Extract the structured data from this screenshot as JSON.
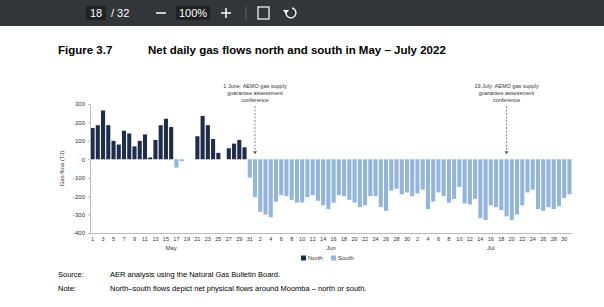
{
  "viewer": {
    "page": "18",
    "page_of": "/ 32",
    "zoom": "100%"
  },
  "chart_data": {
    "type": "bar",
    "figure": "Figure 3.7",
    "title": "Net daily gas flows north and south in May – July 2022",
    "y_label": "Gas flow (TJ)",
    "categories": [
      "1",
      null,
      "3",
      null,
      "5",
      null,
      "7",
      null,
      "9",
      null,
      "11",
      null,
      "13",
      null,
      "15",
      null,
      "17",
      null,
      "19",
      null,
      "21",
      null,
      "23",
      null,
      "25",
      null,
      "27",
      null,
      "29",
      null,
      "31",
      null,
      "2",
      null,
      "4",
      null,
      "6",
      null,
      "8",
      null,
      "10",
      null,
      "12",
      null,
      "14",
      null,
      "16",
      null,
      "18",
      null,
      "20",
      null,
      "22",
      null,
      "24",
      null,
      "26",
      null,
      "28",
      null,
      "30",
      null,
      "2",
      null,
      "4",
      null,
      "6",
      null,
      "8",
      null,
      "10",
      null,
      "12",
      null,
      "14",
      null,
      "16",
      null,
      "18",
      null,
      "20",
      null,
      "22",
      null,
      "24",
      null,
      "26",
      null,
      "28",
      null,
      "30",
      null
    ],
    "x_groups": [
      "May",
      "Jun",
      "Jul"
    ],
    "series": [
      {
        "name": "North",
        "color": "#1f2d4d",
        "values": [
          170,
          185,
          265,
          185,
          100,
          80,
          155,
          140,
          70,
          100,
          135,
          10,
          105,
          185,
          220,
          175,
          null,
          null,
          null,
          null,
          125,
          235,
          185,
          110,
          35,
          null,
          60,
          85,
          105,
          65,
          null,
          null,
          null,
          null,
          null,
          null,
          null,
          null,
          null,
          null,
          null,
          null,
          null,
          null,
          null,
          null,
          null,
          null,
          null,
          null,
          null,
          null,
          null,
          null,
          null,
          null,
          null,
          null,
          null,
          null,
          null,
          null,
          null,
          null,
          null,
          null,
          null,
          null,
          null,
          null,
          null,
          null,
          null,
          null,
          null,
          null,
          null,
          null,
          null,
          null,
          null,
          null,
          null,
          null,
          null,
          null,
          null,
          null,
          null,
          null,
          null,
          null
        ]
      },
      {
        "name": "South",
        "color": "#93b5d9",
        "values": [
          null,
          null,
          null,
          null,
          null,
          null,
          null,
          null,
          null,
          null,
          null,
          null,
          null,
          null,
          null,
          null,
          -45,
          -10,
          null,
          null,
          null,
          null,
          null,
          null,
          null,
          null,
          null,
          null,
          null,
          null,
          -100,
          -205,
          -285,
          -300,
          -315,
          -230,
          -195,
          -200,
          -220,
          -235,
          -235,
          -205,
          -195,
          -225,
          -250,
          -270,
          -235,
          -195,
          -200,
          -220,
          -235,
          -260,
          -250,
          -200,
          -200,
          -260,
          -280,
          -170,
          -160,
          -190,
          -180,
          -200,
          -185,
          -165,
          -270,
          -230,
          -180,
          -200,
          -235,
          -215,
          -150,
          -240,
          -245,
          -215,
          -320,
          -330,
          -250,
          -260,
          -275,
          -310,
          -330,
          -300,
          -250,
          -180,
          -165,
          -270,
          -280,
          -260,
          -270,
          -255,
          -210,
          -190
        ]
      }
    ],
    "ylim": [
      -400,
      300
    ],
    "yticks": [
      -400,
      -300,
      -200,
      -100,
      0,
      100,
      200,
      300
    ],
    "grid": false,
    "legend": "bottom",
    "annotations": [
      {
        "text": [
          "1 June: AEMO gas supply",
          "guarantee assessment",
          "conference"
        ]
      },
      {
        "text": [
          "19 July: AEMO gas supply",
          "guarantee assessment",
          "conference"
        ]
      }
    ],
    "source": {
      "label": "Source:",
      "text": "AER analysis using the Natural Gas Bulletin Board."
    },
    "note": {
      "label": "Note:",
      "text": "North–south flows depict net physical flows around Moomba – north or south."
    }
  }
}
